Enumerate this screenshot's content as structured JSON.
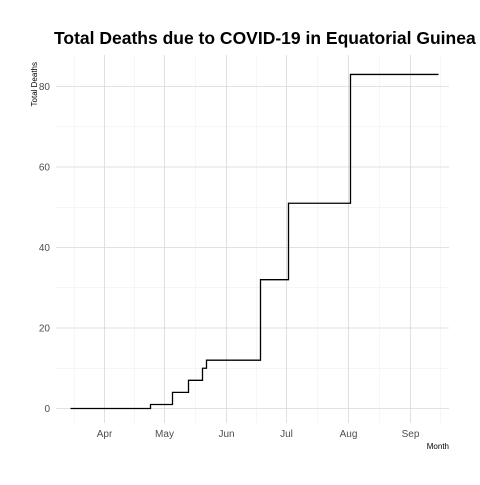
{
  "chart_data": {
    "type": "line",
    "title": "Total Deaths due to COVID-19 in Equatorial Guinea",
    "xlabel": "Month",
    "ylabel": "Total Deaths",
    "x_type": "date",
    "x_ticks": [
      {
        "date": "2020-04-01",
        "label": "Apr"
      },
      {
        "date": "2020-05-01",
        "label": "May"
      },
      {
        "date": "2020-06-01",
        "label": "Jun"
      },
      {
        "date": "2020-07-01",
        "label": "Jul"
      },
      {
        "date": "2020-08-01",
        "label": "Aug"
      },
      {
        "date": "2020-09-01",
        "label": "Sep"
      }
    ],
    "y_ticks": [
      0,
      20,
      40,
      60,
      80
    ],
    "xlim": [
      "2020-03-15",
      "2020-09-22"
    ],
    "ylim": [
      0,
      83
    ],
    "grid": true,
    "legend": "none",
    "line_color": "#000000",
    "series": [
      {
        "step": "post",
        "points": [
          {
            "x": "2020-03-15",
            "y": 0
          },
          {
            "x": "2020-04-24",
            "y": 1
          },
          {
            "x": "2020-05-05",
            "y": 4
          },
          {
            "x": "2020-05-13",
            "y": 7
          },
          {
            "x": "2020-05-20",
            "y": 10
          },
          {
            "x": "2020-05-22",
            "y": 12
          },
          {
            "x": "2020-06-18",
            "y": 32
          },
          {
            "x": "2020-07-02",
            "y": 51
          },
          {
            "x": "2020-08-02",
            "y": 83
          },
          {
            "x": "2020-09-15",
            "y": 83
          }
        ]
      }
    ]
  }
}
